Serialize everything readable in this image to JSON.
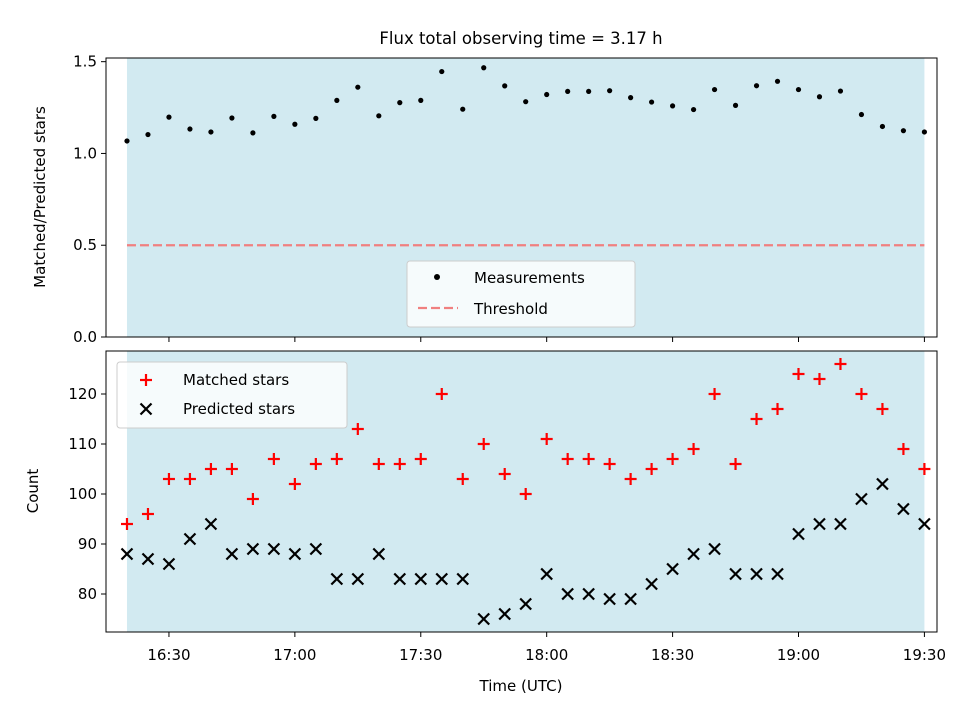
{
  "title": "Flux total observing time = 3.17 h",
  "colors": {
    "shade": "#add8e6",
    "measurement": "#000000",
    "threshold": "#f08080",
    "matched": "#ff0000",
    "predicted": "#000000"
  },
  "chart_data": [
    {
      "type": "scatter",
      "ylabel": "Matched/Predicted stars",
      "ylim": [
        0,
        1.52
      ],
      "yticks": [
        0.0,
        0.5,
        1.0,
        1.5
      ],
      "ytick_labels": [
        "0.0",
        "0.5",
        "1.0",
        "1.5"
      ],
      "shaded_span": [
        "16:20",
        "19:30"
      ],
      "threshold": 0.5,
      "legend": [
        "Measurements",
        "Threshold"
      ],
      "legend_loc": "lower center",
      "x": [
        "16:20",
        "16:25",
        "16:30",
        "16:35",
        "16:40",
        "16:45",
        "16:50",
        "16:55",
        "17:00",
        "17:05",
        "17:10",
        "17:15",
        "17:20",
        "17:25",
        "17:30",
        "17:35",
        "17:40",
        "17:45",
        "17:50",
        "17:55",
        "18:00",
        "18:05",
        "18:10",
        "18:15",
        "18:20",
        "18:25",
        "18:30",
        "18:35",
        "18:40",
        "18:45",
        "18:50",
        "18:55",
        "19:00",
        "19:05",
        "19:10",
        "19:15",
        "19:20",
        "19:25",
        "19:30"
      ],
      "series": [
        {
          "name": "Measurements",
          "values": [
            1.068,
            1.103,
            1.198,
            1.133,
            1.117,
            1.193,
            1.112,
            1.202,
            1.159,
            1.191,
            1.289,
            1.361,
            1.205,
            1.277,
            1.289,
            1.446,
            1.241,
            1.467,
            1.368,
            1.282,
            1.321,
            1.338,
            1.338,
            1.342,
            1.304,
            1.28,
            1.259,
            1.239,
            1.348,
            1.262,
            1.369,
            1.393,
            1.348,
            1.309,
            1.34,
            1.212,
            1.147,
            1.124,
            1.117
          ]
        }
      ]
    },
    {
      "type": "scatter",
      "xlabel": "Time (UTC)",
      "ylabel": "Count",
      "ylim": [
        72.4,
        128.6
      ],
      "yticks": [
        80,
        90,
        100,
        110,
        120
      ],
      "ytick_labels": [
        "80",
        "90",
        "100",
        "110",
        "120"
      ],
      "xticks": [
        "16:30",
        "17:00",
        "17:30",
        "18:00",
        "18:30",
        "19:00",
        "19:30"
      ],
      "xlim": [
        "16:15",
        "19:33"
      ],
      "shaded_span": [
        "16:20",
        "19:30"
      ],
      "legend_loc": "upper left",
      "x": [
        "16:20",
        "16:25",
        "16:30",
        "16:35",
        "16:40",
        "16:45",
        "16:50",
        "16:55",
        "17:00",
        "17:05",
        "17:10",
        "17:15",
        "17:20",
        "17:25",
        "17:30",
        "17:35",
        "17:40",
        "17:45",
        "17:50",
        "17:55",
        "18:00",
        "18:05",
        "18:10",
        "18:15",
        "18:20",
        "18:25",
        "18:30",
        "18:35",
        "18:40",
        "18:45",
        "18:50",
        "18:55",
        "19:00",
        "19:05",
        "19:10",
        "19:15",
        "19:20",
        "19:25",
        "19:30"
      ],
      "series": [
        {
          "name": "Matched stars",
          "marker": "+",
          "values": [
            94,
            96,
            103,
            103,
            105,
            105,
            99,
            107,
            102,
            106,
            107,
            113,
            106,
            106,
            107,
            120,
            103,
            110,
            104,
            100,
            111,
            107,
            107,
            106,
            103,
            105,
            107,
            109,
            120,
            106,
            115,
            117,
            124,
            123,
            126,
            120,
            117,
            109,
            105
          ]
        },
        {
          "name": "Predicted stars",
          "marker": "x",
          "values": [
            88,
            87,
            86,
            91,
            94,
            88,
            89,
            89,
            88,
            89,
            83,
            83,
            88,
            83,
            83,
            83,
            83,
            75,
            76,
            78,
            84,
            80,
            80,
            79,
            79,
            82,
            85,
            88,
            89,
            84,
            84,
            84,
            92,
            94,
            94,
            99,
            102,
            97,
            94
          ]
        }
      ]
    }
  ]
}
